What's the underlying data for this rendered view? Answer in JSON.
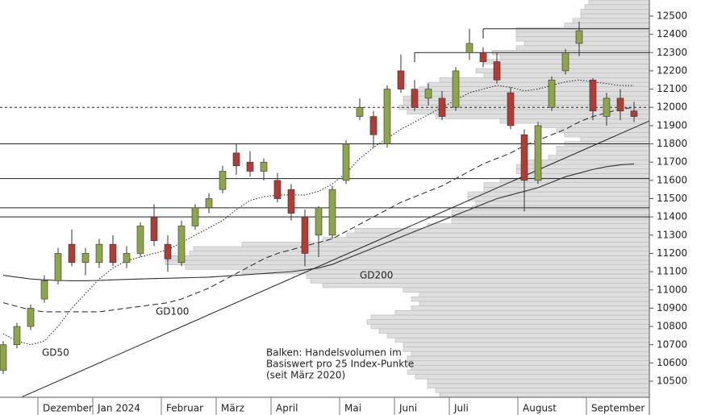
{
  "chart_data": {
    "type": "candlestick",
    "categories": [
      null,
      null,
      null,
      "Dezember",
      null,
      null,
      null,
      "Jan 2024",
      null,
      null,
      null,
      null,
      "Februar",
      null,
      null,
      null,
      "März",
      null,
      null,
      null,
      "April",
      null,
      null,
      null,
      null,
      "Mai",
      null,
      null,
      null,
      "Juni",
      null,
      null,
      null,
      "Juli",
      null,
      null,
      null,
      null,
      "August",
      null,
      null,
      null,
      null,
      "September",
      null,
      null,
      null
    ],
    "open": [
      10560,
      10700,
      10800,
      10950,
      11050,
      11250,
      11150,
      11150,
      11250,
      11150,
      11200,
      11400,
      11250,
      11150,
      11350,
      11450,
      11550,
      11750,
      11700,
      11650,
      11600,
      11550,
      11400,
      11300,
      11300,
      11600,
      11950,
      11950,
      11800,
      12200,
      12100,
      12050,
      12050,
      12000,
      12300,
      12300,
      12250,
      12080,
      11850,
      11600,
      12000,
      12200,
      12350,
      12150,
      11950,
      12050,
      11980
    ],
    "high": [
      10720,
      10820,
      10920,
      11080,
      11230,
      11330,
      11230,
      11280,
      11300,
      11240,
      11370,
      11470,
      11300,
      11380,
      11470,
      11530,
      11680,
      11800,
      11760,
      11720,
      11640,
      11580,
      11440,
      11460,
      11570,
      11820,
      12050,
      11980,
      12120,
      12290,
      12150,
      12130,
      12090,
      12220,
      12430,
      12330,
      12300,
      12110,
      11880,
      11920,
      12170,
      12320,
      12470,
      12160,
      12080,
      12100,
      12030
    ],
    "low": [
      10540,
      10680,
      10780,
      10930,
      11030,
      11130,
      11080,
      11120,
      11130,
      11120,
      11180,
      11240,
      11100,
      11130,
      11330,
      11420,
      11530,
      11630,
      11620,
      11600,
      11480,
      11380,
      11130,
      11180,
      11280,
      11580,
      11930,
      11780,
      11780,
      12080,
      11980,
      12010,
      11930,
      11980,
      12260,
      12220,
      12130,
      11880,
      11430,
      11580,
      11980,
      12180,
      12280,
      11930,
      11900,
      11930,
      11920
    ],
    "close": [
      10700,
      10800,
      10900,
      11050,
      11200,
      11150,
      11200,
      11250,
      11150,
      11200,
      11350,
      11270,
      11170,
      11350,
      11450,
      11500,
      11650,
      11680,
      11650,
      11700,
      11500,
      11420,
      11200,
      11450,
      11550,
      11800,
      12000,
      11850,
      12100,
      12100,
      12000,
      12100,
      11950,
      12200,
      12350,
      12250,
      12150,
      11900,
      11600,
      11900,
      12150,
      12300,
      12420,
      11980,
      12050,
      11980,
      11950
    ],
    "up_color": "#8ea64a",
    "down_color": "#b23b36",
    "series": [
      {
        "name": "GD50",
        "color": "#333333",
        "style": "dotted",
        "values": [
          10760,
          10720,
          10700,
          10720,
          10800,
          10900,
          10980,
          11060,
          11120,
          11160,
          11180,
          11200,
          11220,
          11260,
          11300,
          11340,
          11380,
          11440,
          11490,
          11510,
          11520,
          11520,
          11520,
          11540,
          11580,
          11640,
          11720,
          11780,
          11830,
          11880,
          11920,
          11960,
          12000,
          12040,
          12080,
          12100,
          12120,
          12110,
          12090,
          12100,
          12120,
          12140,
          12150,
          12140,
          12130,
          12120,
          12120
        ]
      },
      {
        "name": "GD100",
        "color": "#333333",
        "style": "dashed",
        "values": [
          10930,
          10910,
          10890,
          10880,
          10880,
          10880,
          10880,
          10880,
          10890,
          10900,
          10910,
          10920,
          10930,
          10950,
          10980,
          11010,
          11050,
          11090,
          11130,
          11170,
          11200,
          11220,
          11240,
          11260,
          11280,
          11320,
          11360,
          11400,
          11440,
          11480,
          11510,
          11540,
          11570,
          11610,
          11650,
          11690,
          11720,
          11750,
          11790,
          11820,
          11850,
          11880,
          11920,
          11950,
          11970,
          11990,
          12000
        ]
      },
      {
        "name": "GD200",
        "color": "#333333",
        "style": "solid",
        "values": [
          11080,
          11070,
          11060,
          11055,
          11052,
          11050,
          11050,
          11052,
          11055,
          11058,
          11060,
          11062,
          11064,
          11066,
          11068,
          11070,
          11075,
          11080,
          11085,
          11090,
          11095,
          11100,
          11110,
          11120,
          11140,
          11170,
          11200,
          11230,
          11260,
          11290,
          11320,
          11350,
          11380,
          11410,
          11440,
          11470,
          11500,
          11520,
          11540,
          11560,
          11590,
          11620,
          11640,
          11660,
          11675,
          11685,
          11690
        ]
      }
    ],
    "trendline": {
      "x": [
        1.4,
        47.1
      ],
      "y": [
        10415,
        11925
      ]
    },
    "levels": [
      {
        "value": 12430,
        "start": 35,
        "style": "solid"
      },
      {
        "value": 12300,
        "start": 30,
        "style": "solid"
      },
      {
        "value": 12000,
        "start": 0,
        "style": "dashed"
      },
      {
        "value": 11800,
        "start": 0,
        "style": "solid"
      },
      {
        "value": 11610,
        "start": 0,
        "style": "solid"
      },
      {
        "value": 11450,
        "start": 0,
        "style": "solid"
      },
      {
        "value": 11400,
        "start": 0,
        "style": "solid"
      }
    ],
    "volume_profile": {
      "step": 25,
      "levels": [
        10425,
        10450,
        10475,
        10500,
        10525,
        10550,
        10575,
        10600,
        10625,
        10650,
        10675,
        10700,
        10725,
        10750,
        10775,
        10800,
        10825,
        10850,
        10875,
        10900,
        10925,
        10950,
        10975,
        11000,
        11025,
        11050,
        11075,
        11100,
        11125,
        11150,
        11175,
        11200,
        11225,
        11250,
        11275,
        11300,
        11325,
        11350,
        11375,
        11400,
        11425,
        11450,
        11475,
        11500,
        11525,
        11550,
        11575,
        11600,
        11625,
        11650,
        11675,
        11700,
        11725,
        11750,
        11775,
        11800,
        11825,
        11850,
        11875,
        11900,
        11925,
        11950,
        11975,
        12000,
        12025,
        12050,
        12075,
        12100,
        12125,
        12150,
        12175,
        12200,
        12225,
        12250,
        12275,
        12300,
        12325,
        12350,
        12375,
        12400,
        12425,
        12450,
        12475,
        12500,
        12525,
        12550,
        12575
      ],
      "values": [
        260,
        265,
        275,
        275,
        290,
        300,
        295,
        300,
        300,
        295,
        305,
        305,
        315,
        325,
        335,
        345,
        350,
        345,
        315,
        295,
        285,
        295,
        285,
        305,
        405,
        420,
        425,
        505,
        575,
        600,
        600,
        570,
        565,
        505,
        405,
        375,
        365,
        275,
        245,
        245,
        245,
        220,
        215,
        225,
        225,
        205,
        205,
        185,
        155,
        165,
        165,
        155,
        125,
        115,
        115,
        105,
        85,
        105,
        115,
        135,
        185,
        265,
        300,
        310,
        305,
        305,
        295,
        285,
        275,
        260,
        205,
        215,
        190,
        205,
        185,
        195,
        165,
        155,
        165,
        165,
        165,
        105,
        95,
        85,
        85,
        80,
        75
      ]
    },
    "note": [
      "Balken: Handelsvolumen im",
      "Basiswert pro 25 Index-Punkte",
      "(seit März 2020)"
    ],
    "ylim": [
      10412,
      12588
    ],
    "yticks": [
      10500,
      10600,
      10700,
      10800,
      10900,
      11000,
      11100,
      11200,
      11300,
      11400,
      11500,
      11600,
      11700,
      11800,
      11900,
      12000,
      12100,
      12200,
      12300,
      12400,
      12500
    ]
  }
}
